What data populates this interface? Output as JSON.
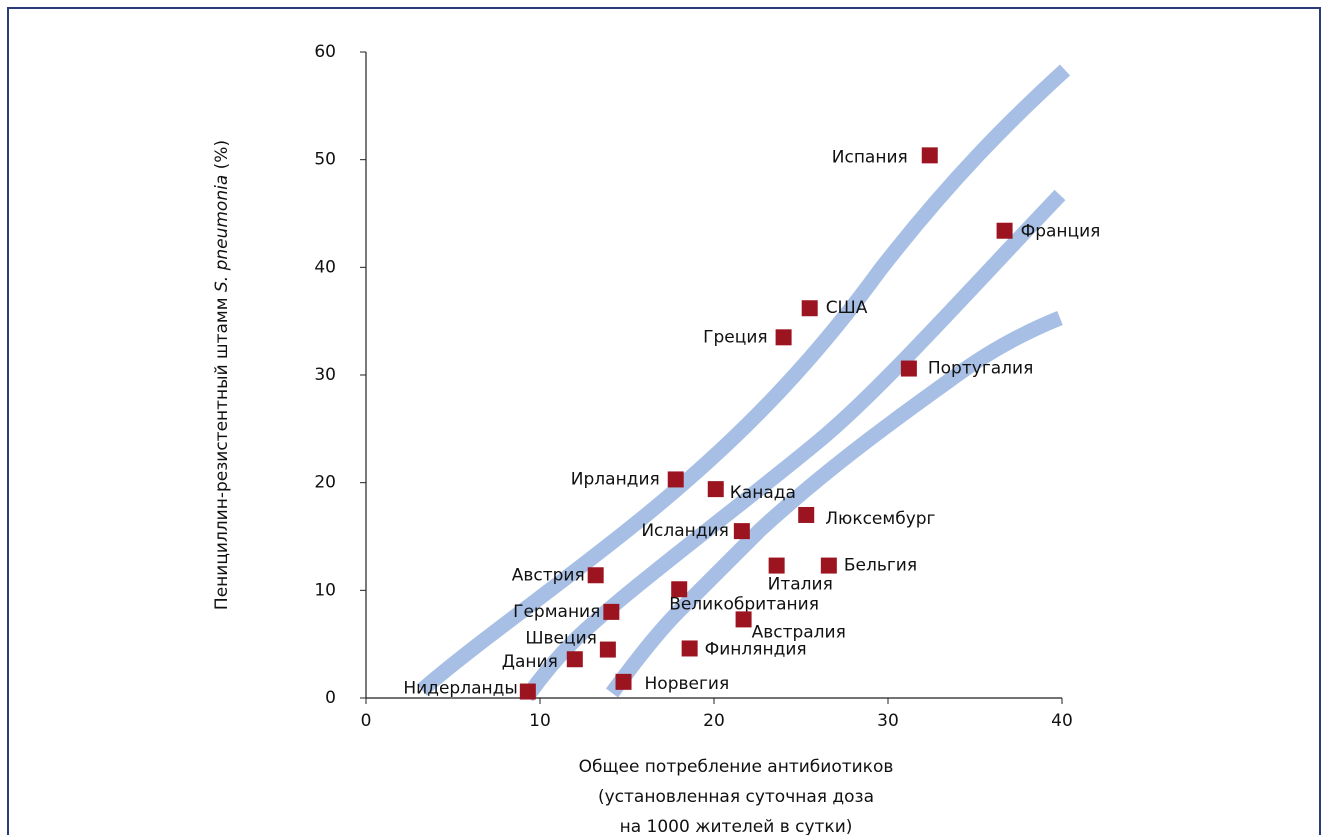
{
  "chart_data": {
    "type": "scatter",
    "y_label_parts": [
      "Пенициллин-резистентный штамм ",
      "S. pneumonia",
      " (%)"
    ],
    "x_label_lines": [
      "Общее потребление антибиотиков",
      "(установленная суточная доза",
      "на 1000 жителей в сутки)"
    ],
    "xlim": [
      0,
      40
    ],
    "xticks": [
      0,
      10,
      20,
      30,
      40
    ],
    "ylim": [
      0,
      60
    ],
    "yticks": [
      0,
      10,
      20,
      30,
      40,
      50,
      60
    ],
    "color": "#9c1420",
    "labels": [
      "Испания",
      "Франция",
      "США",
      "Греция",
      "Португалия",
      "Ирландия",
      "Канада",
      "Люксембург",
      "Исландия",
      "Италия",
      "Бельгия",
      "Австрия",
      "Великобритания",
      "Германия",
      "Австралия",
      "Швеция",
      "Финляндия",
      "Дания",
      "Норвегия",
      "Нидерланды"
    ],
    "x": [
      32.4,
      36.7,
      25.5,
      24.0,
      31.2,
      17.8,
      20.1,
      25.3,
      21.6,
      23.6,
      26.6,
      13.2,
      18.0,
      14.1,
      21.7,
      13.9,
      18.6,
      12.0,
      14.8,
      9.3
    ],
    "values": [
      50.4,
      43.4,
      36.2,
      33.5,
      30.6,
      20.3,
      19.4,
      17.0,
      15.5,
      12.3,
      12.3,
      11.4,
      10.1,
      8.0,
      7.3,
      4.5,
      4.6,
      3.6,
      1.5,
      0.6
    ]
  }
}
